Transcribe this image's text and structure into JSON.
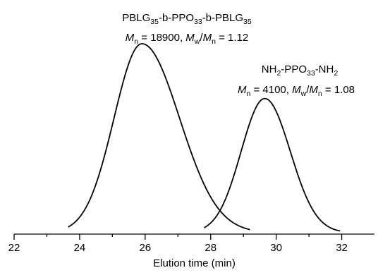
{
  "chart_data": {
    "type": "line",
    "xlabel": "Elution time (min)",
    "ylabel": "",
    "xlim": [
      22,
      33
    ],
    "x_ticks": [
      22,
      24,
      26,
      28,
      30,
      32
    ],
    "x_minor_ticks": [
      23,
      25,
      27,
      29,
      31
    ],
    "grid": false,
    "series": [
      {
        "peak_x": 25.9,
        "x_start": 23.65,
        "x_end": 29.2,
        "relative_height": 1.0,
        "sigma_left": 0.85,
        "sigma_right": 1.15
      },
      {
        "peak_x": 29.65,
        "x_start": 27.8,
        "x_end": 31.95,
        "relative_height": 0.71,
        "sigma_left": 0.72,
        "sigma_right": 0.78
      }
    ],
    "annotations": [
      {
        "line1": [
          {
            "text": "PBLG",
            "style": "normal"
          },
          {
            "text": "35",
            "style": "sub"
          },
          {
            "text": "-b-PPO",
            "style": "normal"
          },
          {
            "text": "33",
            "style": "sub"
          },
          {
            "text": "-b-PBLG",
            "style": "normal"
          },
          {
            "text": "35",
            "style": "sub"
          }
        ],
        "line2": [
          {
            "text": "M",
            "style": "italic"
          },
          {
            "text": "n",
            "style": "sub"
          },
          {
            "text": " = 18900,  ",
            "style": "normal"
          },
          {
            "text": "M",
            "style": "italic"
          },
          {
            "text": "w",
            "style": "sub"
          },
          {
            "text": "/",
            "style": "normal"
          },
          {
            "text": "M",
            "style": "italic"
          },
          {
            "text": "n",
            "style": "sub"
          },
          {
            "text": " = 1.12",
            "style": "normal"
          }
        ]
      },
      {
        "line1": [
          {
            "text": "NH",
            "style": "normal"
          },
          {
            "text": "2",
            "style": "sub"
          },
          {
            "text": "-PPO",
            "style": "normal"
          },
          {
            "text": "33",
            "style": "sub"
          },
          {
            "text": "-NH",
            "style": "normal"
          },
          {
            "text": "2",
            "style": "sub"
          }
        ],
        "line2": [
          {
            "text": "M",
            "style": "italic"
          },
          {
            "text": "n",
            "style": "sub"
          },
          {
            "text": " = 4100,  ",
            "style": "normal"
          },
          {
            "text": "M",
            "style": "italic"
          },
          {
            "text": "w",
            "style": "sub"
          },
          {
            "text": "/",
            "style": "normal"
          },
          {
            "text": "M",
            "style": "italic"
          },
          {
            "text": "n",
            "style": "sub"
          },
          {
            "text": " = 1.08",
            "style": "normal"
          }
        ]
      }
    ]
  }
}
